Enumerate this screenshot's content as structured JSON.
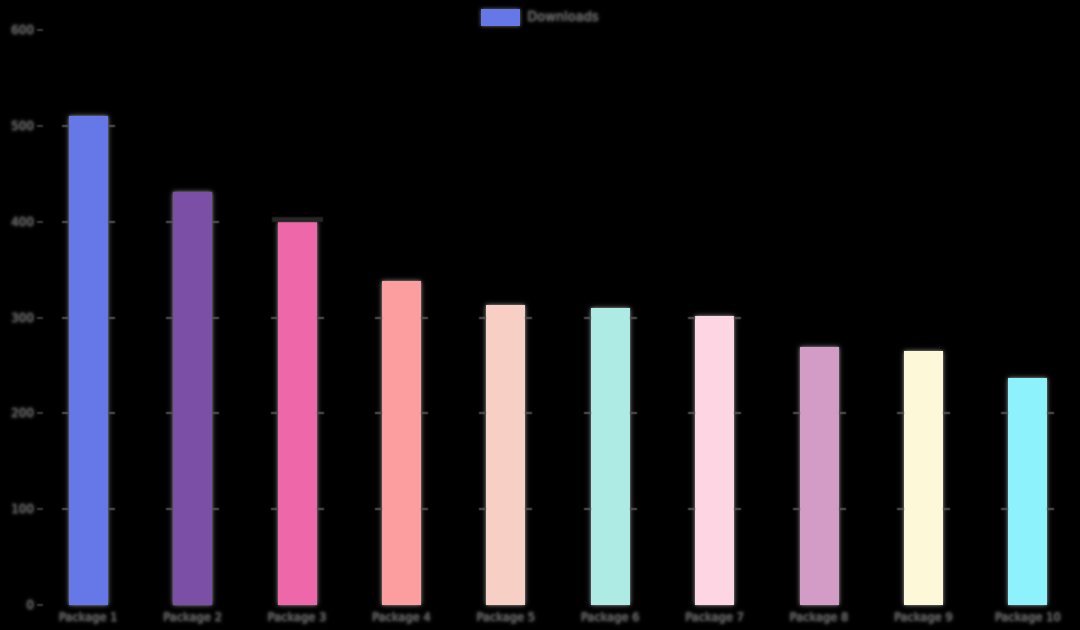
{
  "chart": {
    "background_color": "#000000",
    "text_blob_color": "#4d4d4d",
    "legend_swatch_color": "#6677e8",
    "grid_stub_color": "#555555"
  },
  "chart_data": {
    "type": "bar",
    "title": "",
    "xlabel": "",
    "ylabel": "",
    "legend_label": "Downloads",
    "legend_position": "top-center",
    "grid": "horizontal-faint",
    "ylim": [
      0,
      600
    ],
    "yticks": [
      0,
      100,
      200,
      300,
      400,
      500,
      600
    ],
    "categories": [
      "Package 1",
      "Package 2",
      "Package 3",
      "Package 4",
      "Package 5",
      "Package 6",
      "Package 7",
      "Package 8",
      "Package 9",
      "Package 10"
    ],
    "series": [
      {
        "name": "Downloads",
        "values": [
          510,
          431,
          400,
          338,
          313,
          310,
          302,
          269,
          265,
          237
        ],
        "colors": [
          "#6677e8",
          "#7b4fa5",
          "#ee67a8",
          "#fc9da0",
          "#f8cfc5",
          "#aeebe4",
          "#fdd5e3",
          "#d29cc6",
          "#fdf8d8",
          "#8df2fc"
        ]
      }
    ]
  }
}
